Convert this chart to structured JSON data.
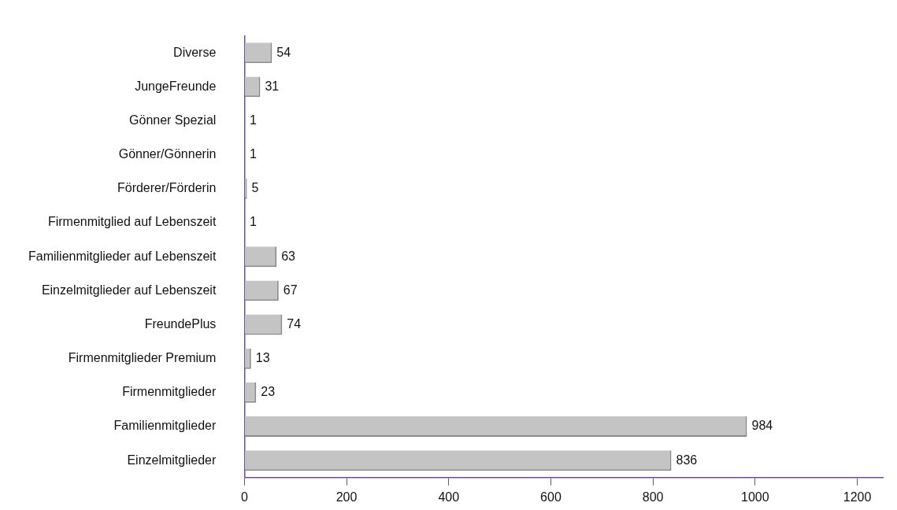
{
  "chart_data": {
    "type": "bar",
    "orientation": "horizontal",
    "categories": [
      "Diverse",
      "JungeFreunde",
      "Gönner Spezial",
      "Gönner/Gönnerin",
      "Förderer/Förderin",
      "Firmenmitglied auf Lebenszeit",
      "Familienmitglieder auf Lebenszeit",
      "Einzelmitglieder auf Lebenszeit",
      "FreundePlus",
      "Firmenmitglieder Premium",
      "Firmenmitglieder",
      "Familienmitglieder",
      "Einzelmitglieder"
    ],
    "values": [
      54,
      31,
      1,
      1,
      5,
      1,
      63,
      67,
      74,
      13,
      23,
      984,
      836
    ],
    "color": "#c4c4c4",
    "xlim": [
      0,
      1250
    ],
    "xticks": [
      0,
      200,
      400,
      600,
      800,
      1000,
      1200
    ],
    "data_labels": true
  }
}
